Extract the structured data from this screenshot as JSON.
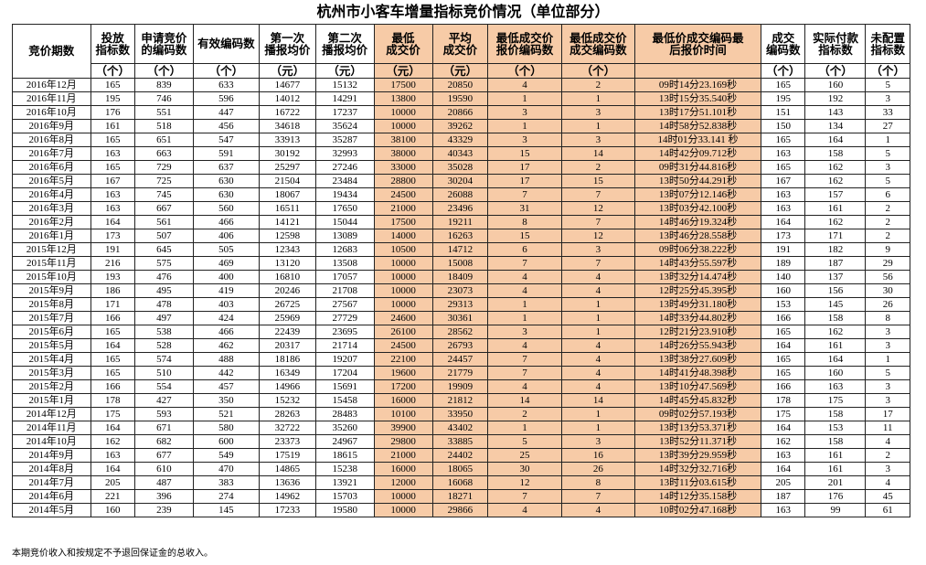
{
  "title": "杭州市小客车增量指标竞价情况（单位部分）",
  "highlight_color": "#f7cba7",
  "headers": [
    {
      "lines": [
        "竞价期数"
      ],
      "unit": null,
      "highlight": false
    },
    {
      "lines": [
        "投放",
        "指标数"
      ],
      "unit": "（个）",
      "highlight": false
    },
    {
      "lines": [
        "申请竞价",
        "的编码数"
      ],
      "unit": "（个）",
      "highlight": false
    },
    {
      "lines": [
        "有效编码数"
      ],
      "unit": "（个）",
      "highlight": false
    },
    {
      "lines": [
        "第一次",
        "播报均价"
      ],
      "unit": "（元）",
      "highlight": false
    },
    {
      "lines": [
        "第二次",
        "播报均价"
      ],
      "unit": "（元）",
      "highlight": false
    },
    {
      "lines": [
        "最低",
        "成交价"
      ],
      "unit": "（元）",
      "highlight": true
    },
    {
      "lines": [
        "平均",
        "成交价"
      ],
      "unit": "（元）",
      "highlight": true
    },
    {
      "lines": [
        "最低成交价",
        "报价编码数"
      ],
      "unit": "（个）",
      "highlight": true
    },
    {
      "lines": [
        "最低成交价",
        "成交编码数"
      ],
      "unit": "（个）",
      "highlight": true
    },
    {
      "lines": [
        "最低价成交编码最",
        "后报价时间"
      ],
      "unit": "",
      "highlight": true
    },
    {
      "lines": [
        "成交",
        "编码数"
      ],
      "unit": "（个）",
      "highlight": false
    },
    {
      "lines": [
        "实际付款",
        "指标数"
      ],
      "unit": "（个）",
      "highlight": false
    },
    {
      "lines": [
        "未配置",
        "指标数"
      ],
      "unit": "（个）",
      "highlight": false
    }
  ],
  "rows": [
    [
      "2016年12月",
      "165",
      "839",
      "633",
      "14677",
      "15132",
      "17500",
      "20850",
      "4",
      "2",
      "09时14分23.169秒",
      "165",
      "160",
      "5"
    ],
    [
      "2016年11月",
      "195",
      "746",
      "596",
      "14012",
      "14291",
      "13800",
      "19590",
      "1",
      "1",
      "13时15分35.540秒",
      "195",
      "192",
      "3"
    ],
    [
      "2016年10月",
      "176",
      "551",
      "447",
      "16722",
      "17237",
      "10000",
      "20866",
      "3",
      "3",
      "13时17分51.101秒",
      "151",
      "143",
      "33"
    ],
    [
      "2016年9月",
      "161",
      "518",
      "456",
      "34618",
      "35624",
      "10000",
      "39262",
      "1",
      "1",
      "14时58分52.838秒",
      "150",
      "134",
      "27"
    ],
    [
      "2016年8月",
      "165",
      "651",
      "547",
      "33913",
      "35287",
      "38100",
      "43329",
      "3",
      "3",
      "14时01分33.141 秒",
      "165",
      "164",
      "1"
    ],
    [
      "2016年7月",
      "163",
      "663",
      "591",
      "30192",
      "32993",
      "38000",
      "40343",
      "15",
      "14",
      "14时42分09.712秒",
      "163",
      "158",
      "5"
    ],
    [
      "2016年6月",
      "165",
      "729",
      "637",
      "25297",
      "27246",
      "33000",
      "35028",
      "17",
      "2",
      "09时31分44.816秒",
      "165",
      "162",
      "3"
    ],
    [
      "2016年5月",
      "167",
      "725",
      "630",
      "21504",
      "23484",
      "28800",
      "30204",
      "17",
      "15",
      "13时50分44.291秒",
      "167",
      "162",
      "5"
    ],
    [
      "2016年4月",
      "163",
      "745",
      "630",
      "18067",
      "19434",
      "24500",
      "26088",
      "7",
      "7",
      "13时07分12.146秒",
      "163",
      "157",
      "6"
    ],
    [
      "2016年3月",
      "163",
      "667",
      "560",
      "16511",
      "17650",
      "21000",
      "23496",
      "31",
      "12",
      "13时03分42.100秒",
      "163",
      "161",
      "2"
    ],
    [
      "2016年2月",
      "164",
      "561",
      "466",
      "14121",
      "15044",
      "17500",
      "19211",
      "8",
      "7",
      "14时46分19.324秒",
      "164",
      "162",
      "2"
    ],
    [
      "2016年1月",
      "173",
      "507",
      "406",
      "12598",
      "13089",
      "14000",
      "16263",
      "15",
      "12",
      "13时46分28.558秒",
      "173",
      "171",
      "2"
    ],
    [
      "2015年12月",
      "191",
      "645",
      "505",
      "12343",
      "12683",
      "10500",
      "14712",
      "6",
      "3",
      "09时06分38.222秒",
      "191",
      "182",
      "9"
    ],
    [
      "2015年11月",
      "216",
      "575",
      "469",
      "13120",
      "13508",
      "10000",
      "15008",
      "7",
      "7",
      "14时43分55.597秒",
      "189",
      "187",
      "29"
    ],
    [
      "2015年10月",
      "193",
      "476",
      "400",
      "16810",
      "17057",
      "10000",
      "18409",
      "4",
      "4",
      "13时32分14.474秒",
      "140",
      "137",
      "56"
    ],
    [
      "2015年9月",
      "186",
      "495",
      "419",
      "20246",
      "21708",
      "10000",
      "23073",
      "4",
      "4",
      "12时25分45.395秒",
      "160",
      "156",
      "30"
    ],
    [
      "2015年8月",
      "171",
      "478",
      "403",
      "26725",
      "27567",
      "10000",
      "29313",
      "1",
      "1",
      "13时49分31.180秒",
      "153",
      "145",
      "26"
    ],
    [
      "2015年7月",
      "166",
      "497",
      "424",
      "25969",
      "27729",
      "24600",
      "30361",
      "1",
      "1",
      "14时33分44.802秒",
      "166",
      "158",
      "8"
    ],
    [
      "2015年6月",
      "165",
      "538",
      "466",
      "22439",
      "23695",
      "26100",
      "28562",
      "3",
      "1",
      "12时21分23.910秒",
      "165",
      "162",
      "3"
    ],
    [
      "2015年5月",
      "164",
      "528",
      "462",
      "20317",
      "21714",
      "24500",
      "26793",
      "4",
      "4",
      "14时26分55.943秒",
      "164",
      "161",
      "3"
    ],
    [
      "2015年4月",
      "165",
      "574",
      "488",
      "18186",
      "19207",
      "22100",
      "24457",
      "7",
      "4",
      "13时38分27.609秒",
      "165",
      "164",
      "1"
    ],
    [
      "2015年3月",
      "165",
      "510",
      "442",
      "16349",
      "17204",
      "19600",
      "21779",
      "7",
      "4",
      "14时41分48.398秒",
      "165",
      "160",
      "5"
    ],
    [
      "2015年2月",
      "166",
      "554",
      "457",
      "14966",
      "15691",
      "17200",
      "19909",
      "4",
      "4",
      "13时10分47.569秒",
      "166",
      "163",
      "3"
    ],
    [
      "2015年1月",
      "178",
      "427",
      "350",
      "15232",
      "15458",
      "16000",
      "21812",
      "14",
      "14",
      "14时45分45.832秒",
      "178",
      "175",
      "3"
    ],
    [
      "2014年12月",
      "175",
      "593",
      "521",
      "28263",
      "28483",
      "10100",
      "33950",
      "2",
      "1",
      "09时02分57.193秒",
      "175",
      "158",
      "17"
    ],
    [
      "2014年11月",
      "164",
      "671",
      "580",
      "32722",
      "35260",
      "39900",
      "43402",
      "1",
      "1",
      "13时13分53.371秒",
      "164",
      "153",
      "11"
    ],
    [
      "2014年10月",
      "162",
      "682",
      "600",
      "23373",
      "24967",
      "29800",
      "33885",
      "5",
      "3",
      "13时52分11.371秒",
      "162",
      "158",
      "4"
    ],
    [
      "2014年9月",
      "163",
      "677",
      "549",
      "17519",
      "18615",
      "21000",
      "24402",
      "25",
      "16",
      "13时39分29.959秒",
      "163",
      "161",
      "2"
    ],
    [
      "2014年8月",
      "164",
      "610",
      "470",
      "14865",
      "15238",
      "16000",
      "18065",
      "30",
      "26",
      "14时32分32.716秒",
      "164",
      "161",
      "3"
    ],
    [
      "2014年7月",
      "205",
      "487",
      "383",
      "13636",
      "13921",
      "12000",
      "16068",
      "12",
      "8",
      "13时11分03.615秒",
      "205",
      "201",
      "4"
    ],
    [
      "2014年6月",
      "221",
      "396",
      "274",
      "14962",
      "15703",
      "10000",
      "18271",
      "7",
      "7",
      "14时12分35.158秒",
      "187",
      "176",
      "45"
    ],
    [
      "2014年5月",
      "160",
      "239",
      "145",
      "17233",
      "19580",
      "10000",
      "29866",
      "4",
      "4",
      "10时02分47.168秒",
      "163",
      "99",
      "61"
    ]
  ],
  "footnote": "本期竞价收入和按规定不予退回保证金的总收入。"
}
